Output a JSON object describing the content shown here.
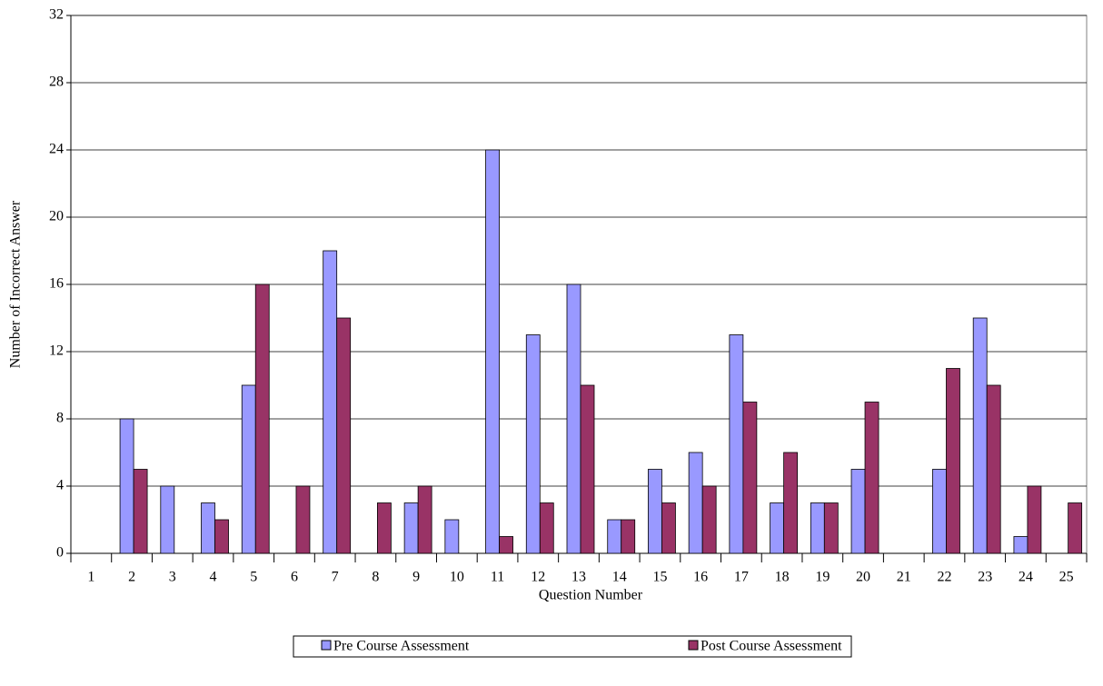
{
  "chart_data": {
    "type": "bar",
    "x_label": "Question Number",
    "y_label": "Number of Incorrect Answer",
    "categories": [
      "1",
      "2",
      "3",
      "4",
      "5",
      "6",
      "7",
      "8",
      "9",
      "10",
      "11",
      "12",
      "13",
      "14",
      "15",
      "16",
      "17",
      "18",
      "19",
      "20",
      "21",
      "22",
      "23",
      "24",
      "25"
    ],
    "series": [
      {
        "name": "Pre Course Assessment",
        "color": "#9999ff",
        "values": [
          0,
          8,
          4,
          3,
          10,
          0,
          18,
          0,
          3,
          2,
          24,
          13,
          16,
          2,
          5,
          6,
          13,
          3,
          3,
          5,
          0,
          5,
          14,
          1,
          0
        ]
      },
      {
        "name": "Post Course Assessment",
        "color": "#993366",
        "values": [
          0,
          5,
          0,
          2,
          16,
          4,
          14,
          3,
          4,
          0,
          1,
          3,
          10,
          2,
          3,
          4,
          9,
          6,
          3,
          9,
          0,
          11,
          10,
          4,
          3
        ]
      }
    ],
    "ylim": [
      0,
      32
    ],
    "yticks": [
      0,
      4,
      8,
      12,
      16,
      20,
      24,
      28,
      32
    ],
    "grid": true,
    "legend": "bottom"
  }
}
